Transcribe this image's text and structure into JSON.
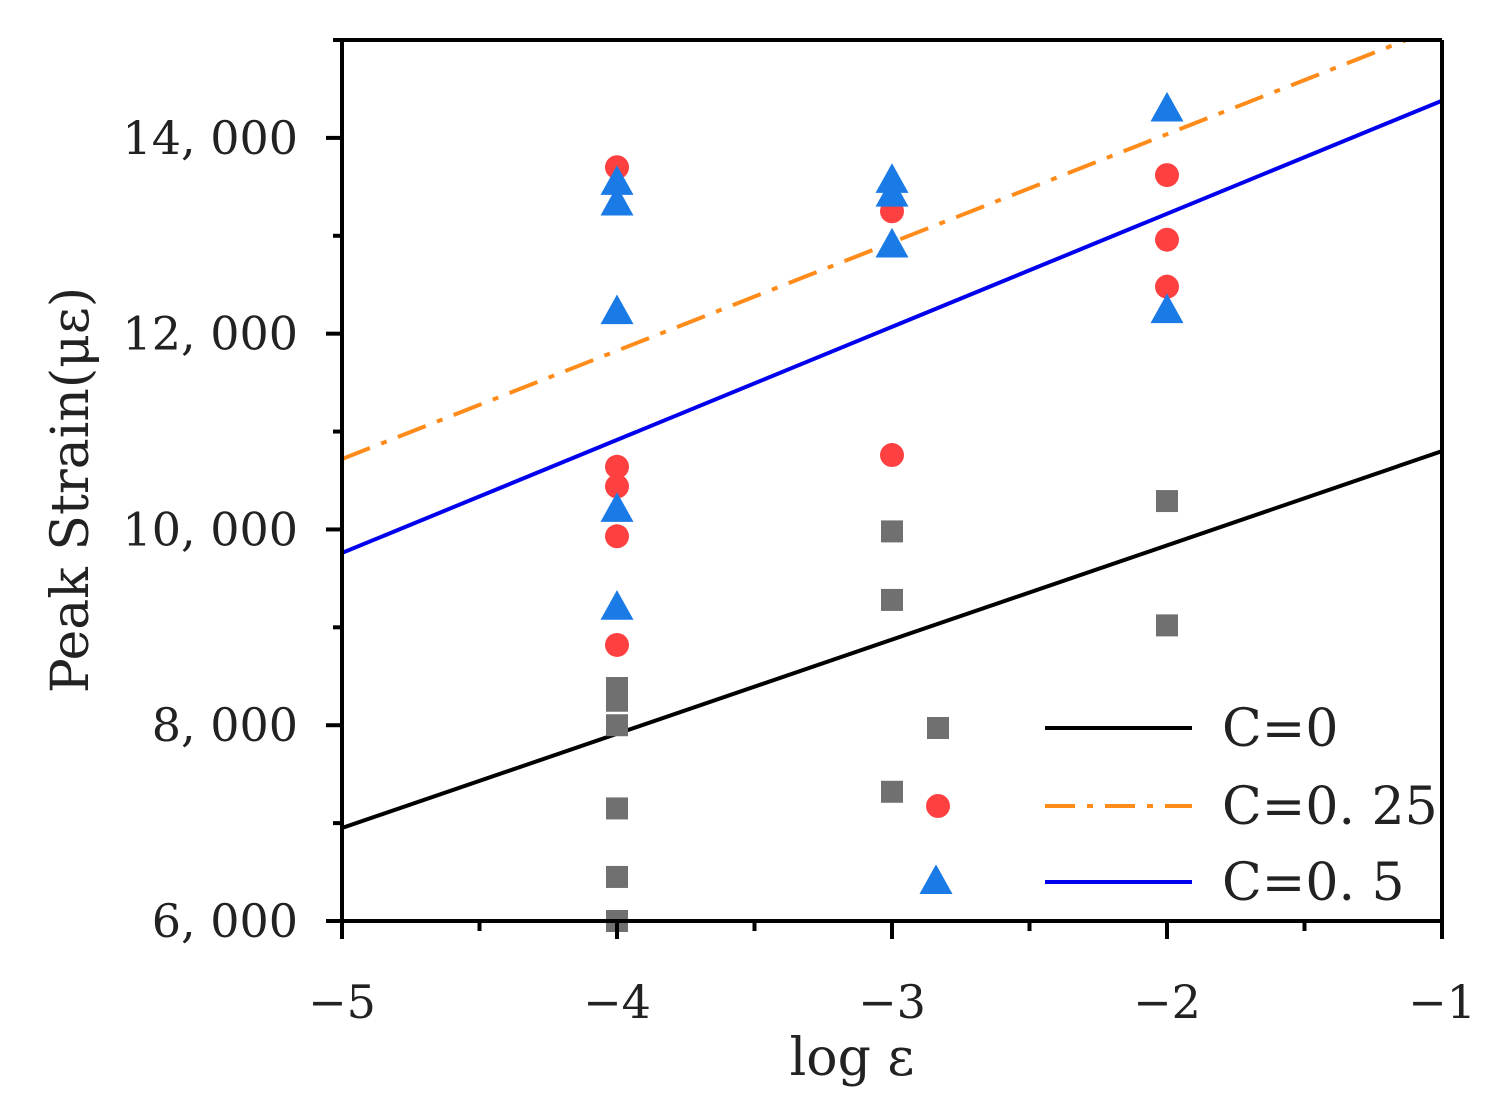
{
  "chart_data": {
    "type": "scatter",
    "xlabel": "log ε",
    "ylabel": "Peak Strain(με)",
    "xlim": [
      -5,
      -1
    ],
    "ylim": [
      6000,
      15000
    ],
    "x_ticks": [
      -5,
      -4,
      -3,
      -2,
      -1
    ],
    "x_tick_labels": [
      "−5",
      "−4",
      "−3",
      "−2",
      "−1"
    ],
    "y_ticks": [
      6000,
      8000,
      10000,
      12000,
      14000
    ],
    "y_tick_labels": [
      "6, 000",
      "8, 000",
      "10, 000",
      "12, 000",
      "14, 000"
    ],
    "grid": false,
    "legend_position": "bottom-right",
    "series": [
      {
        "name": "C=0",
        "color": "#000000",
        "marker": "square",
        "marker_color": "#707070",
        "line_style": "solid",
        "line": {
          "x": [
            -5,
            -1
          ],
          "y": [
            6950,
            10800
          ]
        },
        "points": [
          {
            "x": -4,
            "y": 6000
          },
          {
            "x": -4,
            "y": 6450
          },
          {
            "x": -4,
            "y": 7150
          },
          {
            "x": -4,
            "y": 8000
          },
          {
            "x": -4,
            "y": 8250
          },
          {
            "x": -4,
            "y": 8380
          },
          {
            "x": -3,
            "y": 7320
          },
          {
            "x": -3,
            "y": 9280
          },
          {
            "x": -3,
            "y": 9980
          },
          {
            "x": -2,
            "y": 9020
          },
          {
            "x": -2,
            "y": 10290
          }
        ]
      },
      {
        "name": "C=0. 25",
        "color": "#ff8c1a",
        "marker": "circle",
        "marker_color": "#ff4040",
        "line_style": "dashdot",
        "line": {
          "x": [
            -5,
            -1.13
          ],
          "y": [
            10720,
            15000
          ]
        },
        "points": [
          {
            "x": -4,
            "y": 8820
          },
          {
            "x": -4,
            "y": 9930
          },
          {
            "x": -4,
            "y": 10440
          },
          {
            "x": -4,
            "y": 10640
          },
          {
            "x": -4,
            "y": 13700
          },
          {
            "x": -3,
            "y": 10760
          },
          {
            "x": -3,
            "y": 13250
          },
          {
            "x": -2,
            "y": 12480
          },
          {
            "x": -2,
            "y": 12960
          },
          {
            "x": -2,
            "y": 13620
          }
        ]
      },
      {
        "name": "C=0. 5",
        "color": "#0000ee",
        "marker": "triangle",
        "marker_color": "#1a7ae6",
        "line_style": "solid",
        "line": {
          "x": [
            -5,
            -1
          ],
          "y": [
            9760,
            14380
          ]
        },
        "points": [
          {
            "x": -4,
            "y": 9200
          },
          {
            "x": -4,
            "y": 10200
          },
          {
            "x": -4,
            "y": 12220
          },
          {
            "x": -4,
            "y": 13330
          },
          {
            "x": -4,
            "y": 13540
          },
          {
            "x": -3,
            "y": 12900
          },
          {
            "x": -3,
            "y": 13420
          },
          {
            "x": -3,
            "y": 13560
          },
          {
            "x": -2,
            "y": 12230
          },
          {
            "x": -2,
            "y": 14290
          }
        ]
      }
    ]
  }
}
